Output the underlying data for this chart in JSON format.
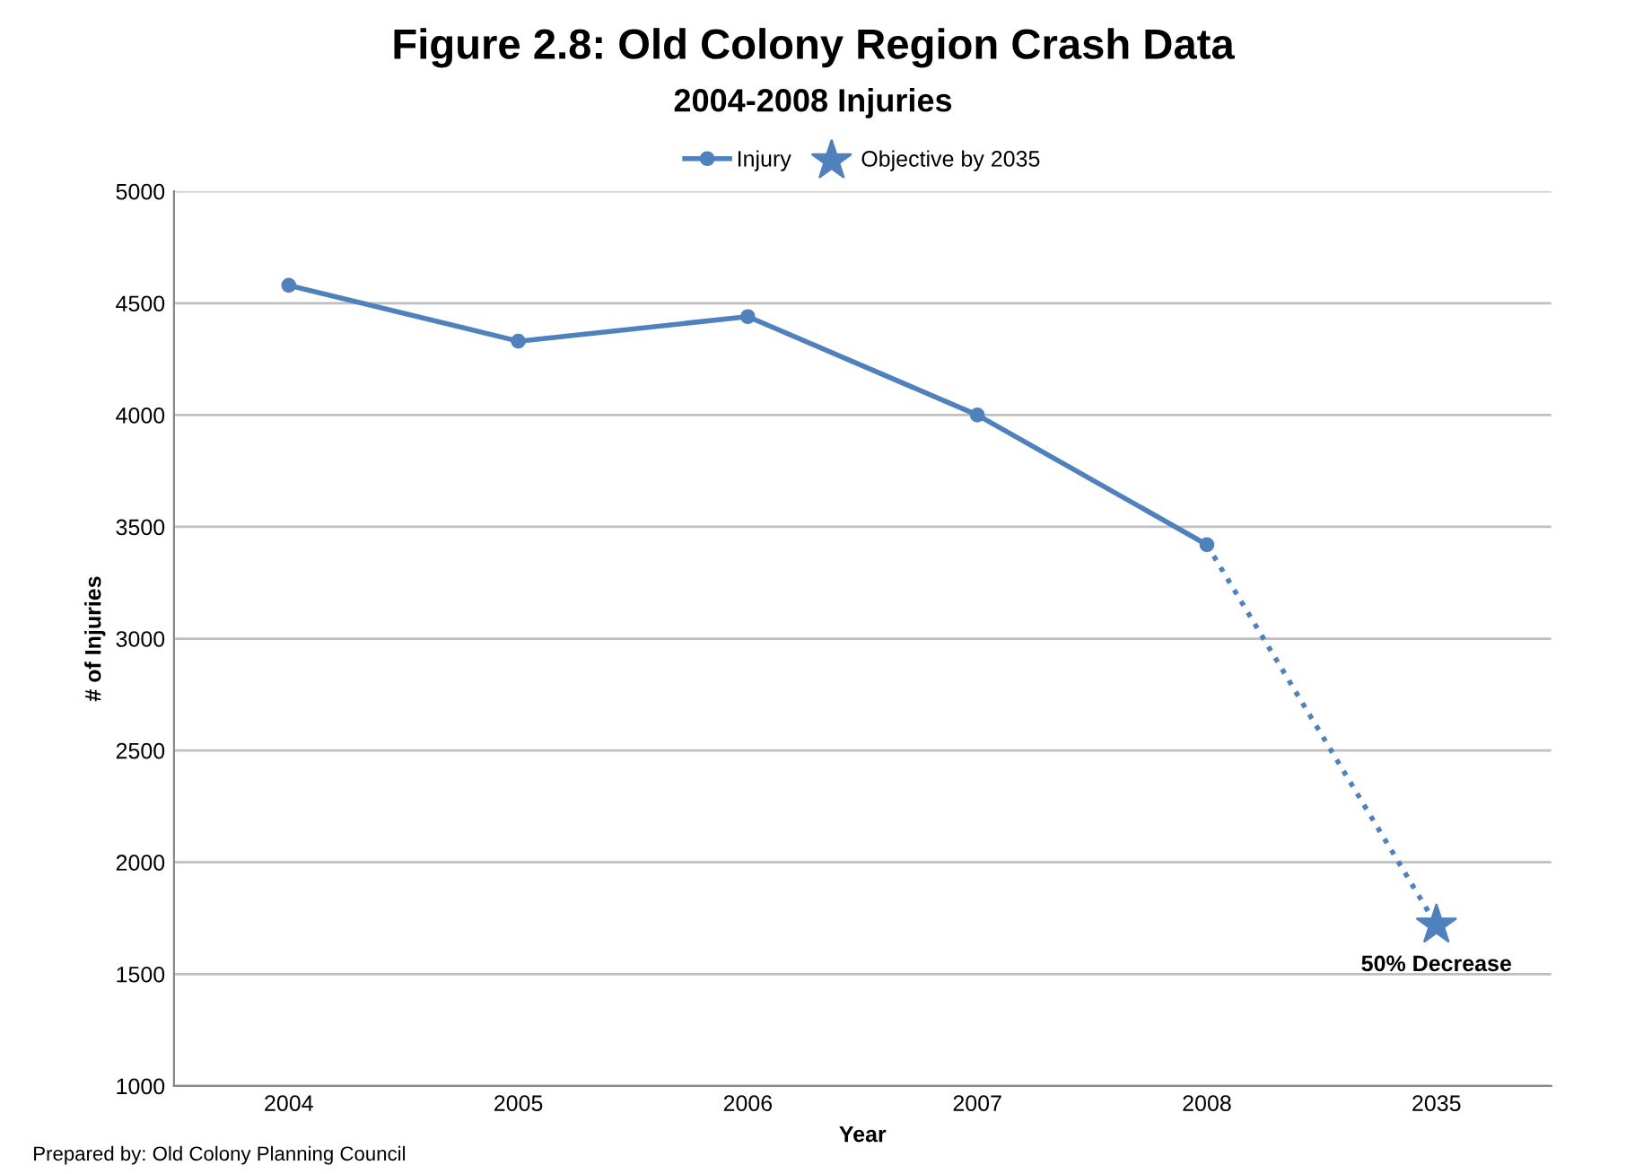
{
  "chart_data": {
    "type": "line",
    "title": "Figure 2.8: Old Colony Region Crash Data",
    "subtitle": "2004-2008 Injuries",
    "xlabel": "Year",
    "ylabel": "# of Injuries",
    "categories": [
      "2004",
      "2005",
      "2006",
      "2007",
      "2008",
      "2035"
    ],
    "series": [
      {
        "name": "Injury",
        "color": "#4f81bd",
        "values": [
          4580,
          4330,
          4440,
          4000,
          3420,
          null
        ],
        "marker": "circle",
        "line_style": "solid"
      },
      {
        "color": "#4f81bd",
        "values": [
          null,
          null,
          null,
          null,
          3420,
          1720
        ],
        "line_style": "dotted"
      },
      {
        "name": "Objective by 2035",
        "type": "scatter",
        "color": "#4f81bd",
        "values": [
          null,
          null,
          null,
          null,
          null,
          1720
        ],
        "marker": "star"
      }
    ],
    "ylim": [
      1000,
      5000
    ],
    "yticks": [
      1000,
      1500,
      2000,
      2500,
      3000,
      3500,
      4000,
      4500,
      5000
    ],
    "grid": "y",
    "legend": "top",
    "annotations": [
      {
        "text": "50% Decrease",
        "x": "2035",
        "y": 1720
      },
      "Prepared by: Old Colony Planning Council"
    ]
  }
}
